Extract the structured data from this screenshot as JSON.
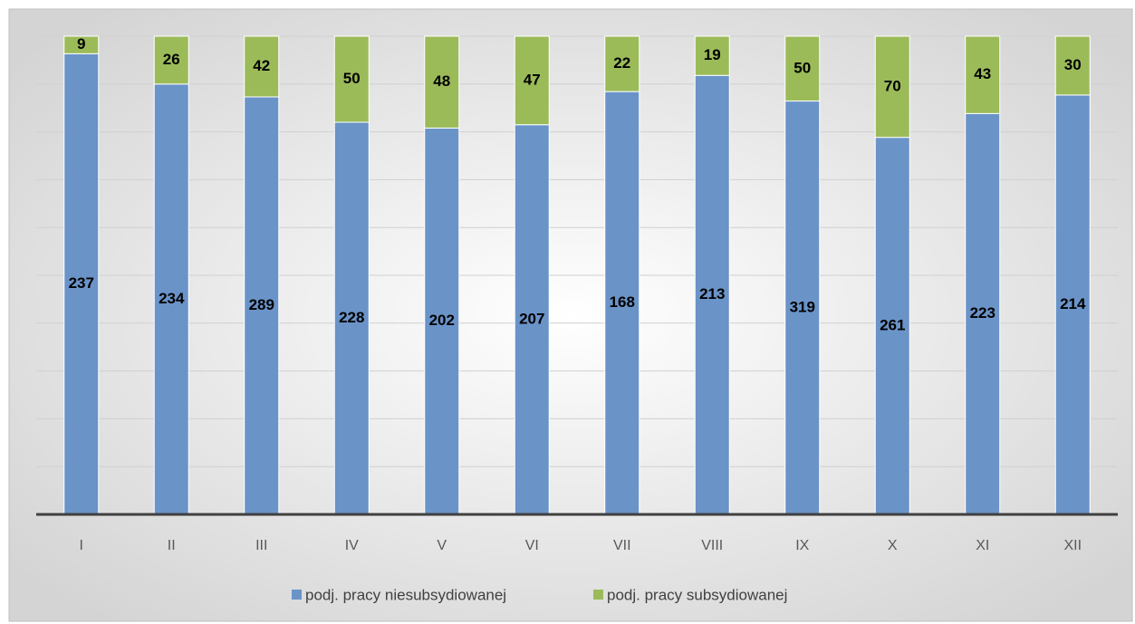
{
  "chart_data": {
    "type": "bar",
    "stacking": "percent",
    "categories": [
      "I",
      "II",
      "III",
      "IV",
      "V",
      "VI",
      "VII",
      "VIII",
      "IX",
      "X",
      "XI",
      "XII"
    ],
    "series": [
      {
        "name": "podj. pracy niesubsydiowanej",
        "color": "#6a93c8",
        "values": [
          237,
          234,
          289,
          228,
          202,
          207,
          168,
          213,
          319,
          261,
          223,
          214
        ]
      },
      {
        "name": "podj. pracy subsydiowanej",
        "color": "#9bbb59",
        "values": [
          9,
          26,
          42,
          50,
          48,
          47,
          22,
          19,
          50,
          70,
          43,
          30
        ]
      }
    ],
    "ylim": [
      0,
      100
    ],
    "yticks": [
      0,
      10,
      20,
      30,
      40,
      50,
      60,
      70,
      80,
      90,
      100
    ],
    "grid": true,
    "legend": "bottom"
  }
}
